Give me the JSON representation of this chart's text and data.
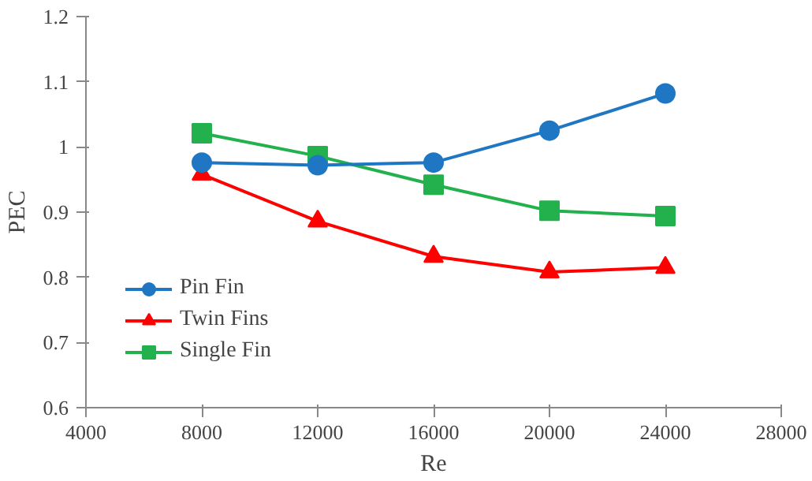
{
  "chart_data": {
    "type": "line",
    "xlabel": "Re",
    "ylabel": "PEC",
    "x": [
      8000,
      12000,
      16000,
      20000,
      24000
    ],
    "series": [
      {
        "name": "Pin Fin",
        "color": "#1f77c4",
        "marker": "circle",
        "values": [
          0.976,
          0.972,
          0.976,
          1.025,
          1.082
        ]
      },
      {
        "name": "Twin Fins",
        "color": "#ff0000",
        "marker": "triangle",
        "values": [
          0.958,
          0.886,
          0.832,
          0.808,
          0.815
        ]
      },
      {
        "name": "Single Fin",
        "color": "#22b14c",
        "marker": "square",
        "values": [
          1.021,
          0.986,
          0.942,
          0.902,
          0.894
        ]
      }
    ],
    "xlim": [
      4000,
      28000
    ],
    "xticks": [
      4000,
      8000,
      12000,
      16000,
      20000,
      24000,
      28000
    ],
    "ylim": [
      0.6,
      1.2
    ],
    "yticks": [
      0.6,
      0.7,
      0.8,
      0.9,
      1,
      1.1,
      1.2
    ],
    "grid": false,
    "legend": "bottom left",
    "line_style": "solid"
  }
}
